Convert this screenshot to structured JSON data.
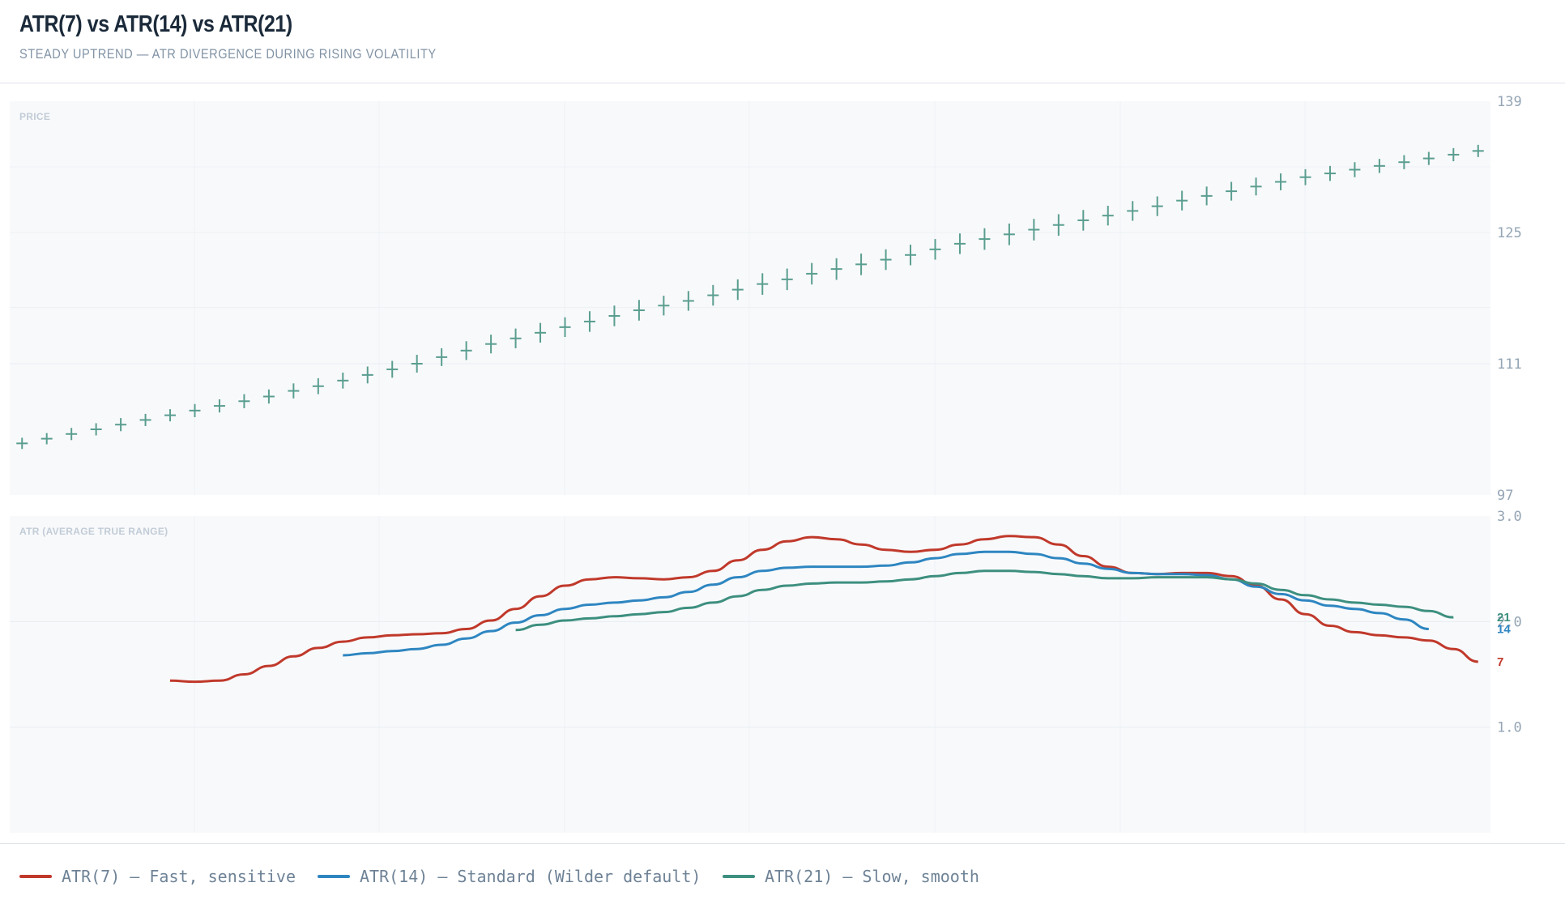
{
  "header": {
    "title": "ATR(7) vs ATR(14) vs ATR(21)",
    "subtitle": "STEADY UPTREND — ATR DIVERGENCE DURING RISING VOLATILITY"
  },
  "legend": [
    {
      "label": "ATR(7) — Fast, sensitive",
      "color": "#c0392b"
    },
    {
      "label": "ATR(14) — Standard (Wilder default)",
      "color": "#2e86c1"
    },
    {
      "label": "ATR(21) — Slow, smooth",
      "color": "#3d8f7f"
    }
  ],
  "chart_data": [
    {
      "type": "candlestick-cross",
      "title": "PRICE",
      "ylim": [
        97,
        139
      ],
      "yticks": [
        "97",
        "111",
        "125",
        "139"
      ],
      "grid": true,
      "marker_color": "#5a9e90",
      "close": [
        102.5,
        103.0,
        103.5,
        104.0,
        104.5,
        105.0,
        105.5,
        106.0,
        106.5,
        107.0,
        107.5,
        108.1,
        108.6,
        109.2,
        109.8,
        110.4,
        111.0,
        111.7,
        112.4,
        113.1,
        113.7,
        114.3,
        114.9,
        115.5,
        116.1,
        116.7,
        117.2,
        117.7,
        118.3,
        118.9,
        119.5,
        120.0,
        120.6,
        121.1,
        121.6,
        122.1,
        122.6,
        123.2,
        123.8,
        124.3,
        124.8,
        125.3,
        125.8,
        126.3,
        126.8,
        127.3,
        127.8,
        128.4,
        128.9,
        129.4,
        129.9,
        130.4,
        130.9,
        131.3,
        131.7,
        132.1,
        132.5,
        132.9,
        133.3,
        133.7
      ],
      "range": [
        1.2,
        1.2,
        1.3,
        1.3,
        1.4,
        1.3,
        1.3,
        1.4,
        1.4,
        1.5,
        1.5,
        1.6,
        1.7,
        1.7,
        1.8,
        1.8,
        1.9,
        1.9,
        2.0,
        2.0,
        2.1,
        2.1,
        2.1,
        2.2,
        2.2,
        2.2,
        2.1,
        2.1,
        2.2,
        2.2,
        2.3,
        2.3,
        2.3,
        2.3,
        2.3,
        2.2,
        2.2,
        2.2,
        2.2,
        2.3,
        2.3,
        2.3,
        2.3,
        2.2,
        2.1,
        2.1,
        2.1,
        2.1,
        2.0,
        2.0,
        1.9,
        1.8,
        1.7,
        1.6,
        1.6,
        1.5,
        1.5,
        1.4,
        1.4,
        1.3
      ]
    },
    {
      "type": "line",
      "title": "ATR (AVERAGE TRUE RANGE)",
      "ylim": [
        0,
        3.0
      ],
      "yticks": [
        "1.0",
        "2.0",
        "3.0"
      ],
      "grid": true,
      "series": [
        {
          "name": "7",
          "start_index": 6,
          "color": "#c0392b",
          "values": [
            1.44,
            1.43,
            1.44,
            1.5,
            1.58,
            1.67,
            1.75,
            1.81,
            1.85,
            1.87,
            1.88,
            1.89,
            1.93,
            2.01,
            2.12,
            2.24,
            2.34,
            2.4,
            2.42,
            2.41,
            2.4,
            2.42,
            2.48,
            2.58,
            2.68,
            2.76,
            2.8,
            2.78,
            2.73,
            2.68,
            2.66,
            2.68,
            2.73,
            2.78,
            2.81,
            2.8,
            2.73,
            2.62,
            2.52,
            2.46,
            2.45,
            2.46,
            2.46,
            2.43,
            2.34,
            2.21,
            2.07,
            1.96,
            1.9,
            1.87,
            1.85,
            1.82,
            1.74,
            1.62
          ]
        },
        {
          "name": "14",
          "start_index": 13,
          "color": "#2e86c1",
          "values": [
            1.68,
            1.7,
            1.72,
            1.74,
            1.78,
            1.84,
            1.91,
            1.99,
            2.06,
            2.12,
            2.16,
            2.18,
            2.2,
            2.23,
            2.28,
            2.35,
            2.42,
            2.48,
            2.51,
            2.52,
            2.52,
            2.52,
            2.53,
            2.56,
            2.6,
            2.64,
            2.66,
            2.66,
            2.64,
            2.6,
            2.55,
            2.5,
            2.46,
            2.45,
            2.45,
            2.44,
            2.4,
            2.33,
            2.26,
            2.2,
            2.15,
            2.12,
            2.08,
            2.02,
            1.93
          ]
        },
        {
          "name": "21",
          "start_index": 20,
          "color": "#3d8f7f",
          "values": [
            1.92,
            1.97,
            2.01,
            2.03,
            2.05,
            2.07,
            2.09,
            2.13,
            2.18,
            2.24,
            2.3,
            2.34,
            2.36,
            2.37,
            2.37,
            2.38,
            2.4,
            2.43,
            2.46,
            2.48,
            2.48,
            2.47,
            2.45,
            2.43,
            2.41,
            2.41,
            2.42,
            2.42,
            2.42,
            2.4,
            2.36,
            2.3,
            2.25,
            2.21,
            2.18,
            2.16,
            2.14,
            2.1,
            2.04
          ]
        }
      ]
    }
  ]
}
